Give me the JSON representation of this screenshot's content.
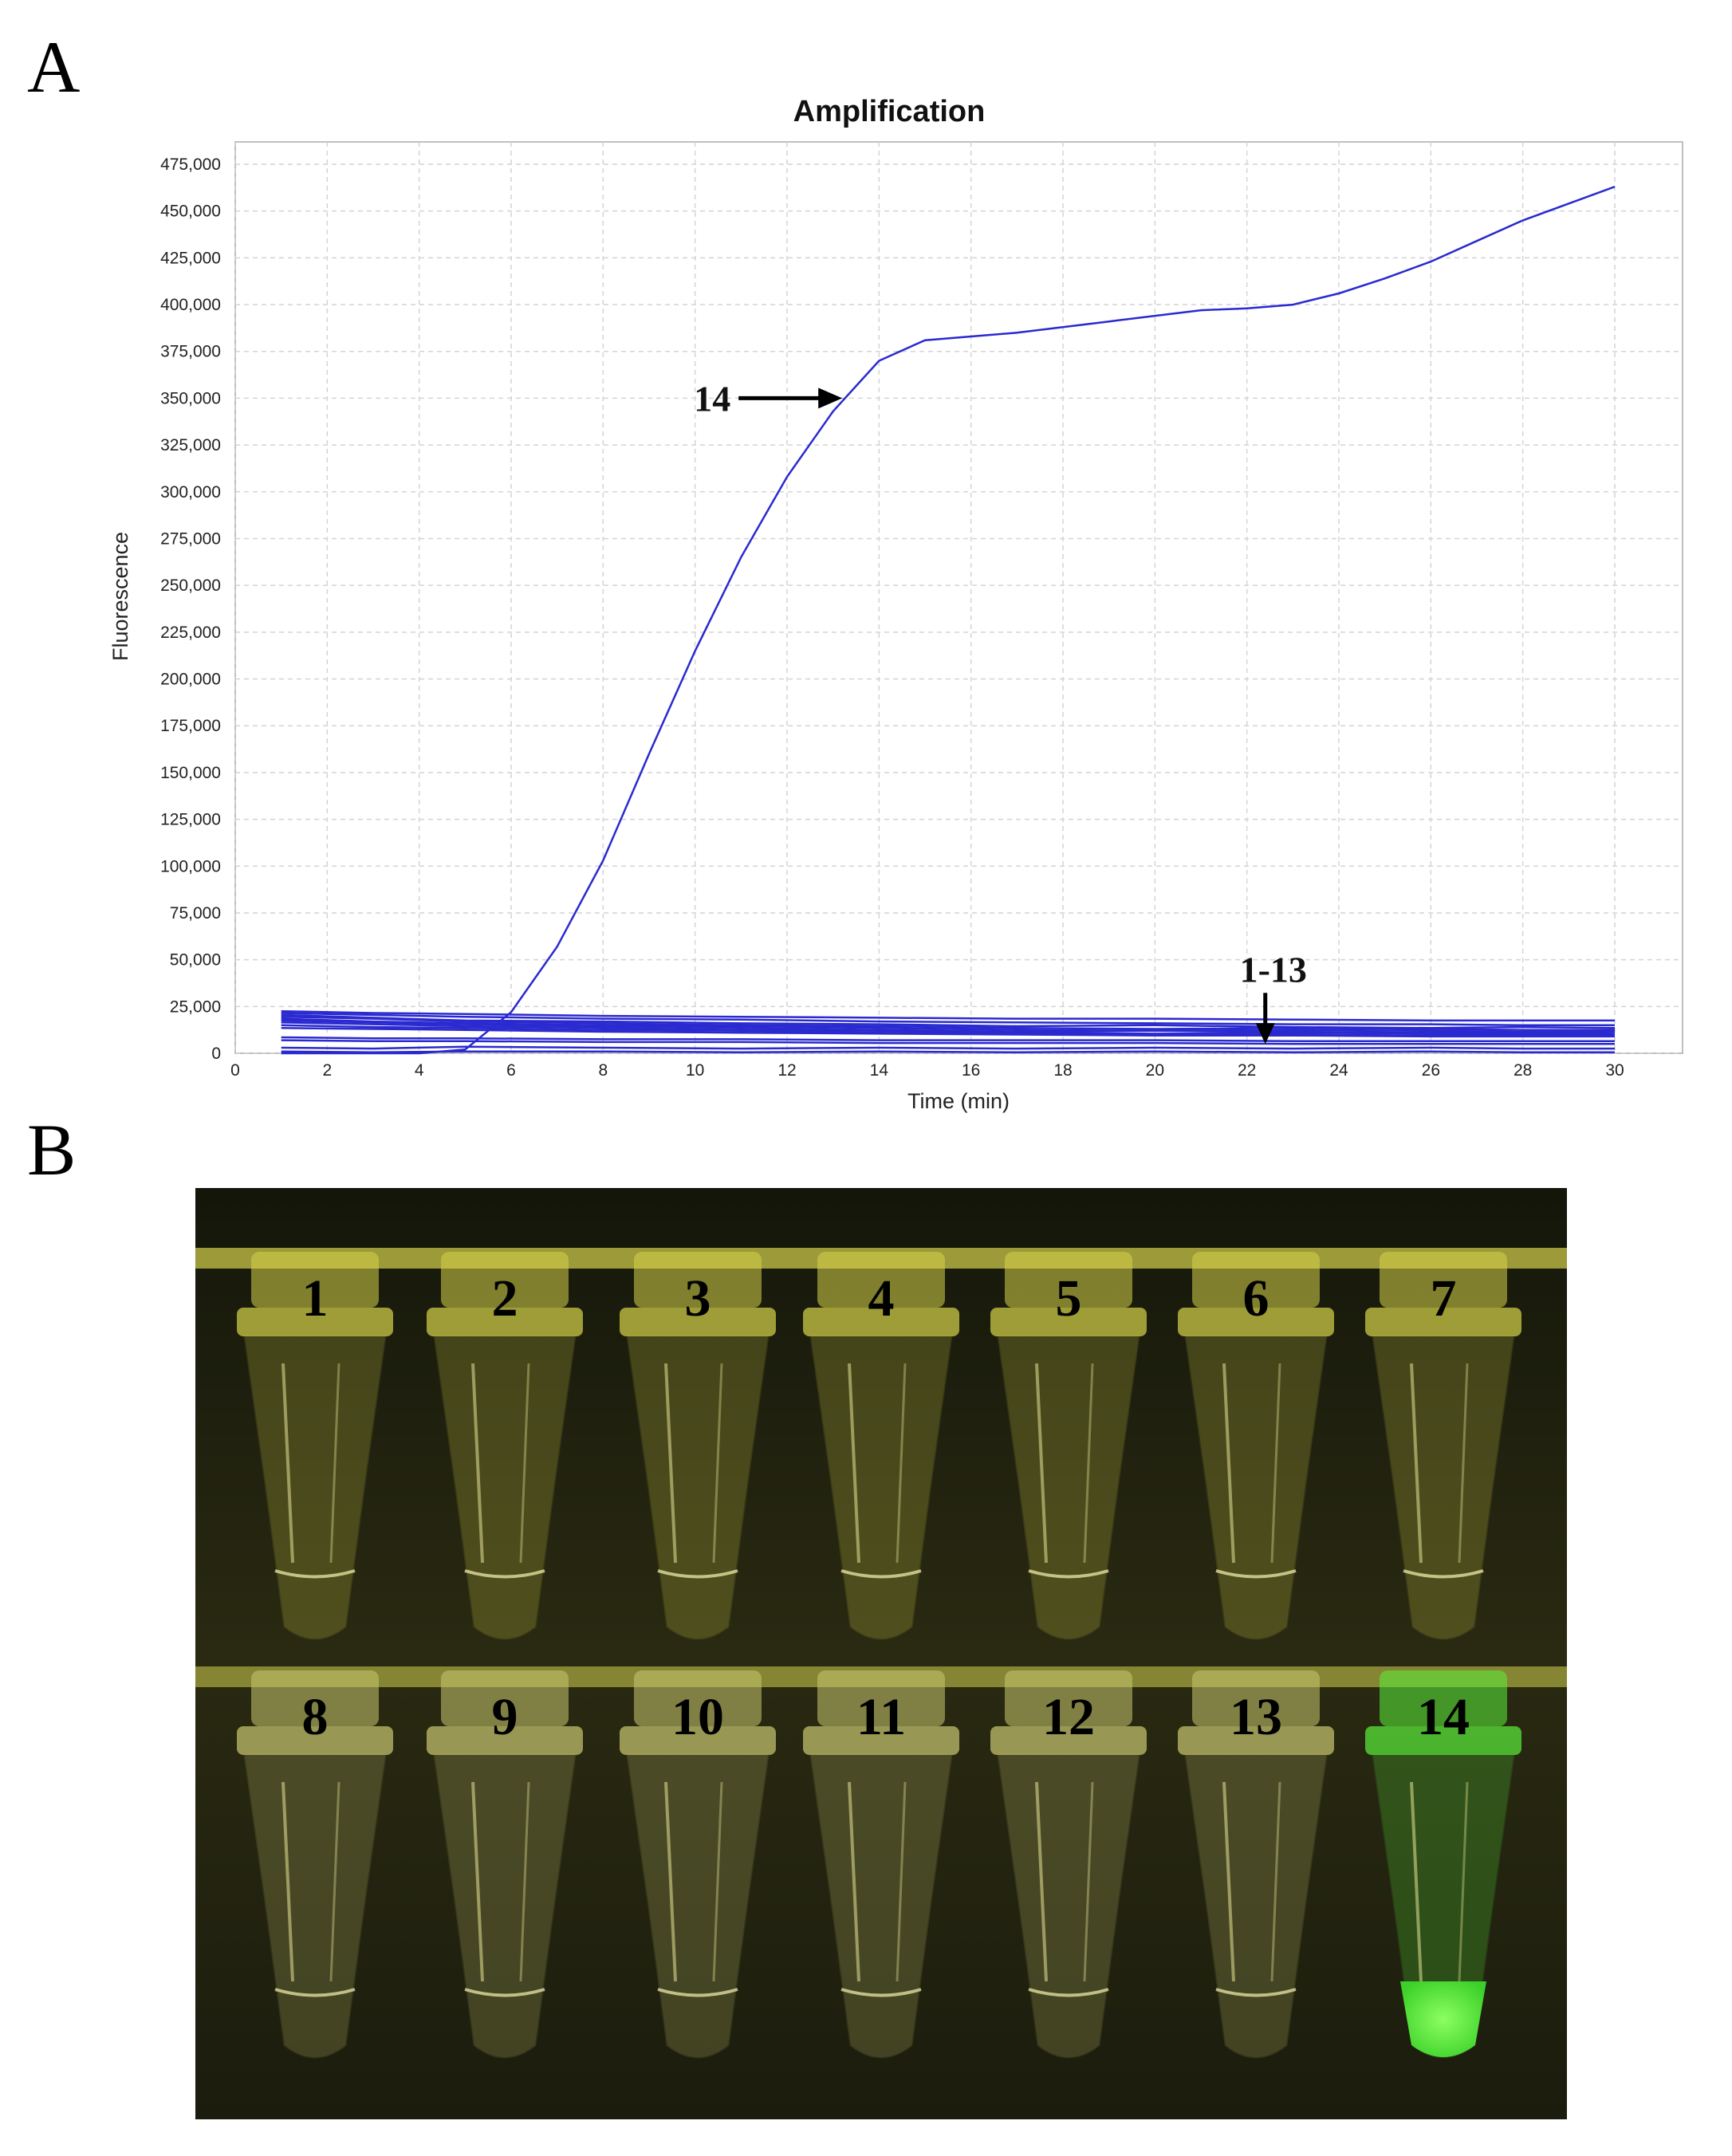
{
  "panels": {
    "a_label": "A",
    "b_label": "B"
  },
  "chart_data": {
    "type": "line",
    "title": "Amplification",
    "xlabel": "Time (min)",
    "ylabel": "Fluorescence",
    "xlim": [
      0,
      30
    ],
    "ylim": [
      0,
      475000
    ],
    "x_ticks": [
      0,
      2,
      4,
      6,
      8,
      10,
      12,
      14,
      16,
      18,
      20,
      22,
      24,
      26,
      28,
      30
    ],
    "y_ticks": [
      0,
      25000,
      50000,
      75000,
      100000,
      125000,
      150000,
      175000,
      200000,
      225000,
      250000,
      275000,
      300000,
      325000,
      350000,
      375000,
      400000,
      425000,
      450000,
      475000
    ],
    "y_tick_labels": [
      "0",
      "25,000",
      "50,000",
      "75,000",
      "100,000",
      "125,000",
      "150,000",
      "175,000",
      "200,000",
      "225,000",
      "250,000",
      "275,000",
      "300,000",
      "325,000",
      "350,000",
      "375,000",
      "400,000",
      "425,000",
      "450,000",
      "475,000"
    ],
    "grid": true,
    "line_color": "#2a2ad0",
    "series": [
      {
        "name": "14",
        "x": [
          1,
          2,
          3,
          4,
          5,
          6,
          7,
          8,
          9,
          10,
          11,
          12,
          13,
          14,
          15,
          16,
          17,
          18,
          19,
          20,
          21,
          22,
          23,
          24,
          25,
          26,
          27,
          28,
          29,
          30
        ],
        "values": [
          0,
          0,
          0,
          0,
          2000,
          22000,
          57000,
          103000,
          160000,
          215000,
          265000,
          308000,
          343000,
          370000,
          381000,
          383000,
          385000,
          388000,
          391000,
          394000,
          397000,
          398000,
          400000,
          406000,
          414000,
          423000,
          434000,
          445000,
          454000,
          463000
        ]
      },
      {
        "name": "",
        "x": [
          1,
          3,
          5,
          8,
          11,
          14,
          17,
          20,
          23,
          26,
          28,
          30
        ],
        "values": [
          22500,
          21500,
          21000,
          20000,
          19500,
          19000,
          18500,
          18500,
          18000,
          17500,
          17500,
          17500
        ]
      },
      {
        "name": "",
        "x": [
          1,
          3,
          5,
          8,
          11,
          14,
          17,
          20,
          23,
          26,
          28,
          30
        ],
        "values": [
          21500,
          20500,
          19500,
          18500,
          18000,
          17000,
          16500,
          16000,
          15500,
          15500,
          15000,
          15000
        ]
      },
      {
        "name": "",
        "x": [
          1,
          3,
          5,
          8,
          11,
          14,
          17,
          20,
          23,
          26,
          28,
          30
        ],
        "values": [
          20500,
          19000,
          17500,
          17000,
          16000,
          15500,
          14500,
          15000,
          14000,
          13500,
          14000,
          13500
        ]
      },
      {
        "name": "",
        "x": [
          1,
          3,
          5,
          8,
          11,
          14,
          17,
          20,
          23,
          26,
          28,
          30
        ],
        "values": [
          19500,
          18500,
          17000,
          16000,
          15000,
          14500,
          13500,
          13000,
          13500,
          13000,
          12500,
          12500
        ]
      },
      {
        "name": "",
        "x": [
          1,
          3,
          5,
          8,
          11,
          14,
          17,
          20,
          23,
          26,
          28,
          30
        ],
        "values": [
          18500,
          17000,
          16000,
          15000,
          14500,
          13500,
          12500,
          12000,
          12500,
          12000,
          11500,
          11500
        ]
      },
      {
        "name": "",
        "x": [
          1,
          3,
          5,
          8,
          11,
          14,
          17,
          20,
          23,
          26,
          28,
          30
        ],
        "values": [
          17500,
          16500,
          15500,
          14500,
          13500,
          12500,
          11500,
          12000,
          11500,
          11000,
          11000,
          10500
        ]
      },
      {
        "name": "",
        "x": [
          1,
          3,
          5,
          8,
          11,
          14,
          17,
          20,
          23,
          26,
          28,
          30
        ],
        "values": [
          16500,
          15500,
          14500,
          13500,
          12500,
          12000,
          11000,
          10500,
          11000,
          10500,
          10000,
          10000
        ]
      },
      {
        "name": "",
        "x": [
          1,
          3,
          5,
          8,
          11,
          14,
          17,
          20,
          23,
          26,
          28,
          30
        ],
        "values": [
          15000,
          14000,
          13500,
          12500,
          12000,
          11000,
          10500,
          10000,
          10000,
          9500,
          9500,
          9500
        ]
      },
      {
        "name": "",
        "x": [
          1,
          3,
          5,
          8,
          11,
          14,
          17,
          20,
          23,
          26,
          28,
          30
        ],
        "values": [
          13500,
          13000,
          12500,
          11500,
          11000,
          10500,
          10000,
          9500,
          9500,
          9000,
          9000,
          9000
        ]
      },
      {
        "name": "",
        "x": [
          1,
          3,
          5,
          8,
          11,
          14,
          17,
          20,
          23,
          26,
          28,
          30
        ],
        "values": [
          8500,
          8000,
          8000,
          7500,
          7500,
          7000,
          7000,
          7000,
          6500,
          6500,
          6500,
          6500
        ]
      },
      {
        "name": "",
        "x": [
          1,
          3,
          5,
          8,
          11,
          14,
          17,
          20,
          23,
          26,
          28,
          30
        ],
        "values": [
          7000,
          6500,
          6500,
          6000,
          6000,
          5500,
          5500,
          5500,
          5000,
          5000,
          5000,
          5000
        ]
      },
      {
        "name": "",
        "x": [
          1,
          3,
          5,
          8,
          11,
          14,
          17,
          20,
          23,
          26,
          28,
          30
        ],
        "values": [
          3000,
          2500,
          3500,
          3000,
          2500,
          3000,
          2500,
          3000,
          2500,
          3000,
          2500,
          2500
        ]
      },
      {
        "name": "",
        "x": [
          1,
          3,
          5,
          8,
          11,
          14,
          17,
          20,
          23,
          26,
          28,
          30
        ],
        "values": [
          1000,
          500,
          1000,
          1000,
          500,
          1000,
          500,
          1000,
          500,
          1000,
          500,
          500
        ]
      }
    ],
    "annotations": [
      {
        "text": "14",
        "points_to": {
          "x": 13.2,
          "y": 350000
        }
      },
      {
        "text": "1-13",
        "points_to": {
          "x": 22.4,
          "y": 5000
        }
      }
    ]
  },
  "photo": {
    "tubes": [
      {
        "label": "1",
        "color": "#d7d44a"
      },
      {
        "label": "2",
        "color": "#d7d44a"
      },
      {
        "label": "3",
        "color": "#d7d44a"
      },
      {
        "label": "4",
        "color": "#d7d44a"
      },
      {
        "label": "5",
        "color": "#d7d44a"
      },
      {
        "label": "6",
        "color": "#d7d44a"
      },
      {
        "label": "7",
        "color": "#d7d44a"
      },
      {
        "label": "8",
        "color": "#c9c870"
      },
      {
        "label": "9",
        "color": "#c9c870"
      },
      {
        "label": "10",
        "color": "#c9c870"
      },
      {
        "label": "11",
        "color": "#c9c870"
      },
      {
        "label": "12",
        "color": "#c9c870"
      },
      {
        "label": "13",
        "color": "#c9c870"
      },
      {
        "label": "14",
        "color": "#5bf03a"
      }
    ]
  }
}
